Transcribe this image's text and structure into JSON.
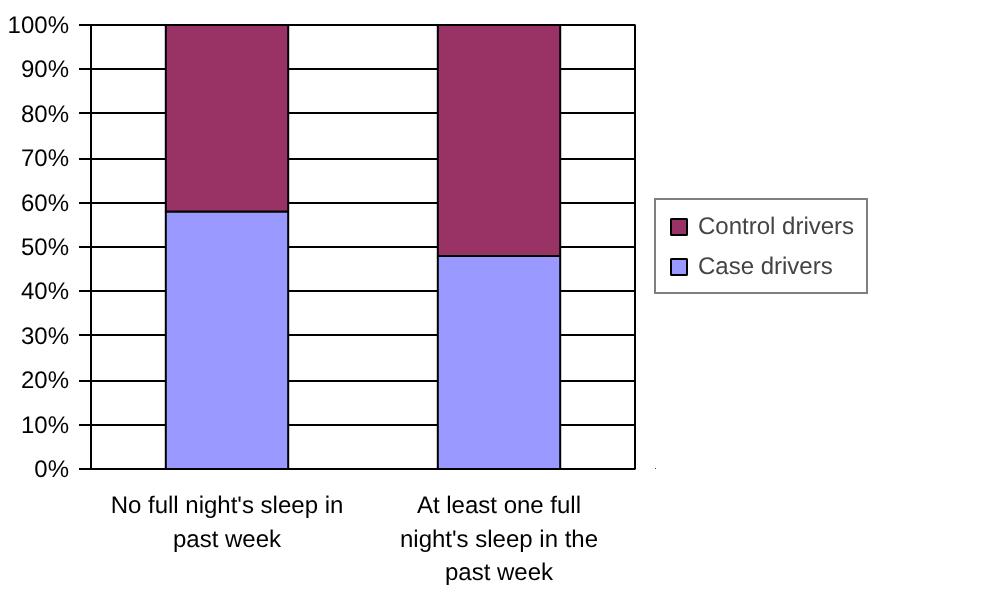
{
  "chart_data": {
    "type": "bar",
    "stacked": true,
    "categories": [
      "No full night's sleep in past week",
      "At least one full night's sleep in the past week"
    ],
    "series": [
      {
        "name": "Case drivers",
        "color": "#9999ff",
        "values": [
          58,
          48
        ]
      },
      {
        "name": "Control drivers",
        "color": "#993366",
        "values": [
          42,
          52
        ]
      }
    ],
    "ylim": [
      0,
      100
    ],
    "yticks": [
      {
        "value": 0,
        "label": "0%"
      },
      {
        "value": 10,
        "label": "10%"
      },
      {
        "value": 20,
        "label": "20%"
      },
      {
        "value": 30,
        "label": "30%"
      },
      {
        "value": 40,
        "label": "40%"
      },
      {
        "value": 50,
        "label": "50%"
      },
      {
        "value": 60,
        "label": "60%"
      },
      {
        "value": 70,
        "label": "70%"
      },
      {
        "value": 80,
        "label": "80%"
      },
      {
        "value": 90,
        "label": "90%"
      },
      {
        "value": 100,
        "label": "100%"
      }
    ],
    "grid": "y",
    "legend": "right"
  }
}
